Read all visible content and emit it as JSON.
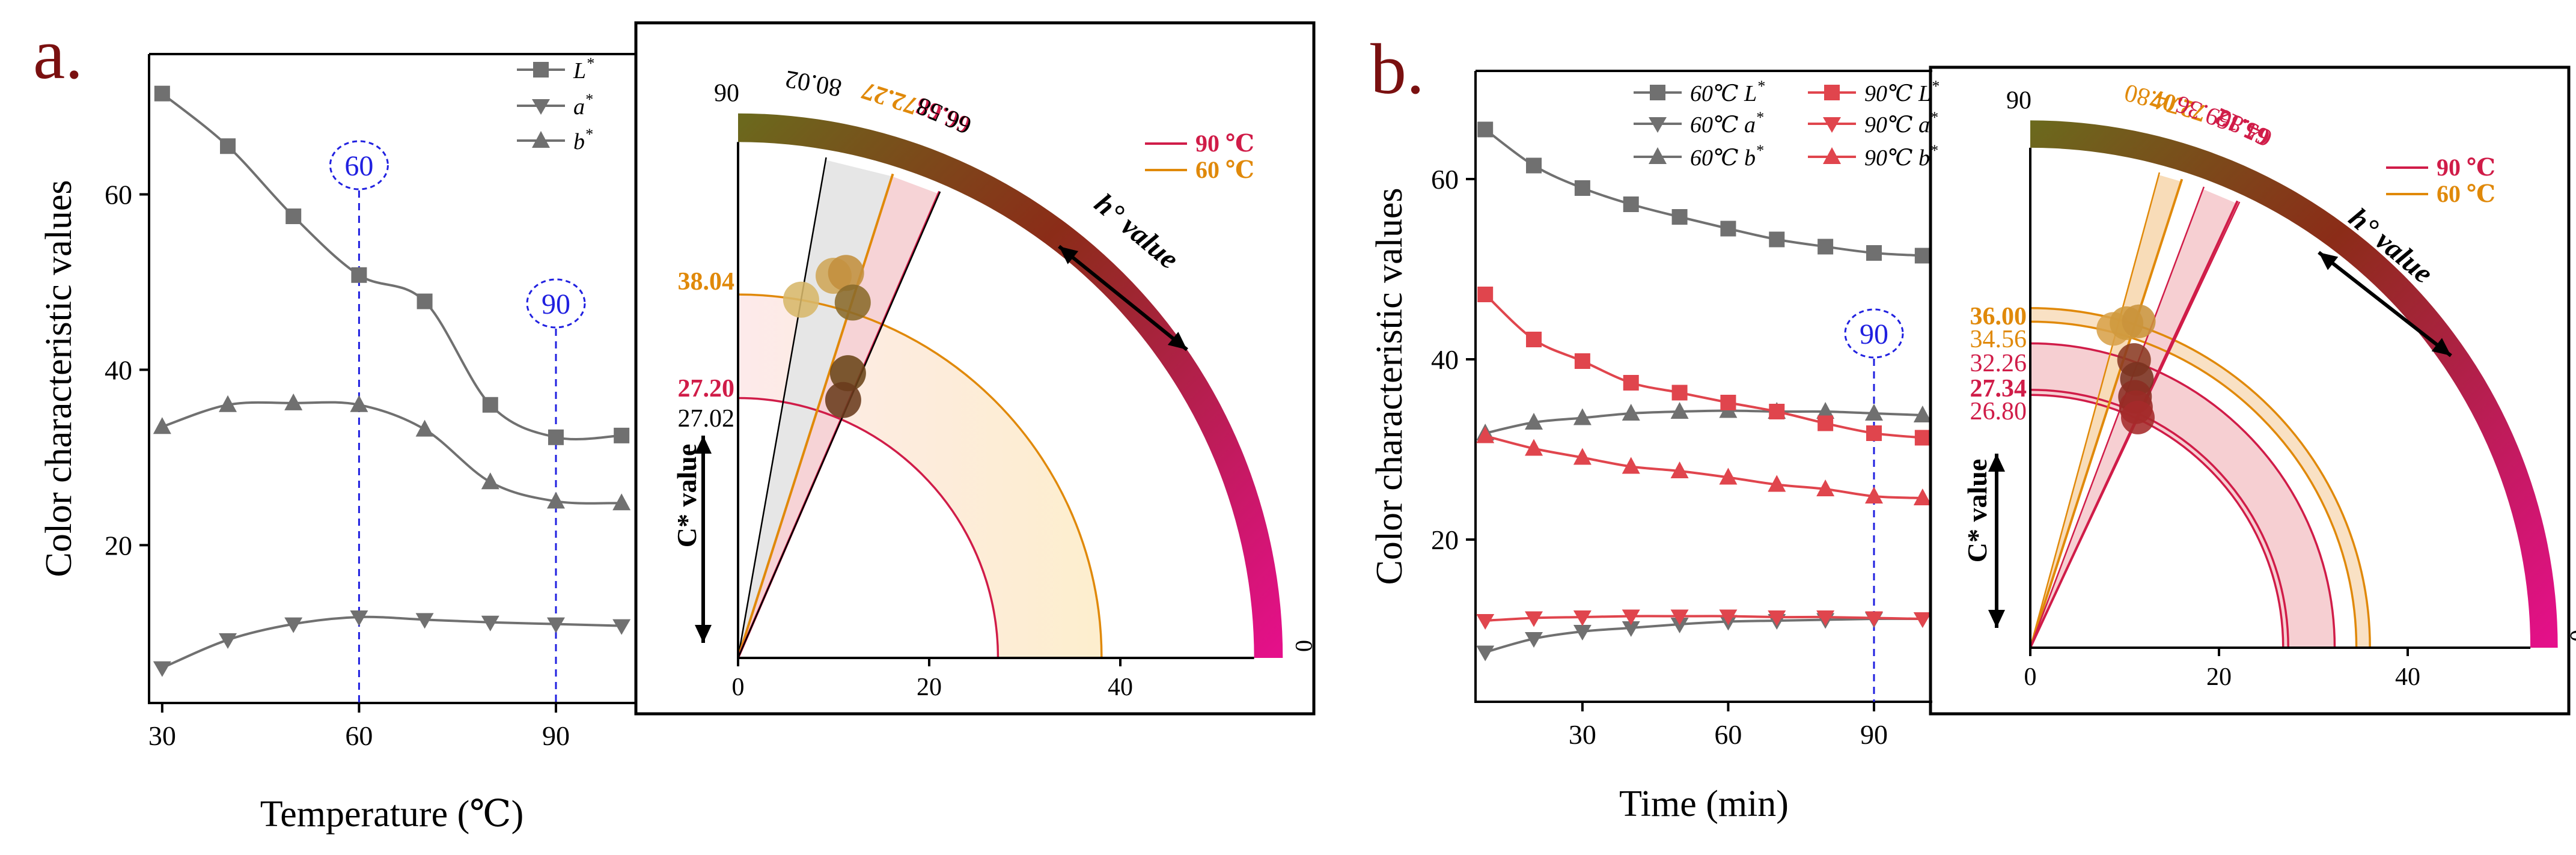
{
  "colors": {
    "axis": "#000000",
    "gray_series": "#707070",
    "red_series": "#e0454d",
    "guide": "#2020e0",
    "panel_label": "#7a1010",
    "hue_90C": "#d01c48",
    "hue_60C": "#e0890a",
    "hue_bar_start": "#6b6a1d",
    "hue_bar_mid": "#8b2c18",
    "hue_bar_end": "#e60f8c"
  },
  "chart_data": [
    {
      "id": "a-line",
      "type": "line",
      "panel_label": "a.",
      "xlabel": "Temperature (℃)",
      "ylabel": "Color characteristic values",
      "xlim": [
        28,
        102
      ],
      "ylim": [
        2,
        76
      ],
      "xticks": [
        30,
        60,
        90
      ],
      "yticks": [
        20,
        40,
        60
      ],
      "x": [
        30,
        40,
        50,
        60,
        70,
        80,
        90,
        100
      ],
      "series": [
        {
          "name": "L",
          "label": "L",
          "marker": "square",
          "color": "#707070",
          "values": [
            71.5,
            65.5,
            57.5,
            50.8,
            47.8,
            36.0,
            32.3,
            32.5
          ]
        },
        {
          "name": "a",
          "label": "a",
          "marker": "triangle-down",
          "color": "#707070",
          "values": [
            6.0,
            9.2,
            11.0,
            11.8,
            11.5,
            11.2,
            11.0,
            10.8
          ]
        },
        {
          "name": "b",
          "label": "b",
          "marker": "triangle-up",
          "color": "#707070",
          "values": [
            33.5,
            36.0,
            36.2,
            36.0,
            33.2,
            27.2,
            25.0,
            24.8
          ]
        }
      ],
      "annotations": [
        {
          "text": "60",
          "x": 60
        },
        {
          "text": "90",
          "x": 90
        }
      ]
    },
    {
      "id": "a-polar",
      "type": "scatter",
      "xticks": [
        0,
        20,
        40
      ],
      "r_max": 54,
      "angle_start_label": "90",
      "angle_end_label": "0",
      "hue_axis_label": "h° value",
      "chroma_axis_label": "C* value",
      "legend": [
        {
          "label": "90 ℃",
          "color": "#d01c48"
        },
        {
          "label": "60 ℃",
          "color": "#e0890a"
        }
      ],
      "hue_lines": [
        {
          "label": "80.02",
          "angle": 80.02,
          "color": "#000000",
          "bold": false
        },
        {
          "label": "72.27",
          "angle": 72.27,
          "color": "#e0890a",
          "bold": true
        },
        {
          "label": "66.66",
          "angle": 66.66,
          "color": "#d01c48",
          "bold": true
        },
        {
          "label": "66.58",
          "angle": 66.58,
          "color": "#000000",
          "bold": false
        }
      ],
      "chroma_arcs": [
        {
          "label": "38.04",
          "r": 38.04,
          "color": "#e0890a",
          "bold": true
        },
        {
          "label": "27.20",
          "r": 27.2,
          "color": "#d01c48",
          "bold": true
        },
        {
          "label": "27.02",
          "r": 27.02,
          "color": "#000000",
          "bold": false
        }
      ],
      "points": [
        {
          "x": 6.6,
          "y": 37.5,
          "color": "#d7b76a"
        },
        {
          "x": 10.0,
          "y": 40.0,
          "color": "#cfa658"
        },
        {
          "x": 11.3,
          "y": 40.3,
          "color": "#c38f3e"
        },
        {
          "x": 12.0,
          "y": 37.2,
          "color": "#8a6a2a"
        },
        {
          "x": 11.5,
          "y": 29.8,
          "color": "#6a4418"
        },
        {
          "x": 11.0,
          "y": 27.0,
          "color": "#6a3b1c"
        }
      ]
    },
    {
      "id": "b-line",
      "type": "line",
      "panel_label": "b.",
      "xlabel": "Time (min)",
      "ylabel": "Color characteristic values",
      "xlim": [
        8,
        102
      ],
      "ylim": [
        2,
        72
      ],
      "xticks": [
        30,
        60,
        90
      ],
      "yticks": [
        20,
        40,
        60
      ],
      "x": [
        10,
        20,
        30,
        40,
        50,
        60,
        70,
        80,
        90,
        100
      ],
      "series": [
        {
          "name": "60L",
          "label": "60℃ L",
          "marker": "square",
          "color": "#707070",
          "values": [
            65.5,
            61.5,
            59.0,
            57.2,
            55.8,
            54.5,
            53.3,
            52.5,
            51.8,
            51.5
          ]
        },
        {
          "name": "60a",
          "label": "60℃ a",
          "marker": "triangle-down",
          "color": "#707070",
          "values": [
            7.5,
            9.0,
            9.8,
            10.2,
            10.6,
            10.9,
            11.0,
            11.1,
            11.2,
            11.2
          ]
        },
        {
          "name": "60b",
          "label": "60℃ b",
          "marker": "triangle-up",
          "color": "#707070",
          "values": [
            31.8,
            33.0,
            33.5,
            34.0,
            34.2,
            34.3,
            34.2,
            34.2,
            34.0,
            33.8
          ]
        },
        {
          "name": "90L",
          "label": "90℃ L",
          "marker": "square",
          "color": "#e0454d",
          "values": [
            47.2,
            42.2,
            39.8,
            37.4,
            36.3,
            35.2,
            34.2,
            32.9,
            31.8,
            31.3
          ]
        },
        {
          "name": "90a",
          "label": "90℃ a",
          "marker": "triangle-down",
          "color": "#e0454d",
          "values": [
            11.0,
            11.3,
            11.4,
            11.5,
            11.5,
            11.5,
            11.4,
            11.4,
            11.3,
            11.2
          ]
        },
        {
          "name": "90b",
          "label": "90℃ b",
          "marker": "triangle-up",
          "color": "#e0454d",
          "values": [
            31.5,
            30.1,
            29.1,
            28.1,
            27.6,
            26.9,
            26.1,
            25.6,
            24.8,
            24.6
          ]
        }
      ],
      "annotations": [
        {
          "text": "90",
          "x": 90
        }
      ]
    },
    {
      "id": "b-polar",
      "type": "scatter",
      "xticks": [
        0,
        20,
        40
      ],
      "r_max": 53,
      "angle_start_label": "90",
      "angle_end_label": "0",
      "hue_axis_label": "h° value",
      "chroma_axis_label": "C* value",
      "legend": [
        {
          "label": "90 ℃",
          "color": "#d01c48"
        },
        {
          "label": "60 ℃",
          "color": "#e0890a"
        }
      ],
      "hue_lines": [
        {
          "label": "74.80",
          "angle": 74.8,
          "color": "#e0890a",
          "bold": false
        },
        {
          "label": "72.07",
          "angle": 72.07,
          "color": "#e0890a",
          "bold": true
        },
        {
          "label": "69.36",
          "angle": 69.36,
          "color": "#d01c48",
          "bold": false
        },
        {
          "label": "65.12",
          "angle": 65.12,
          "color": "#d01c48",
          "bold": true
        },
        {
          "label": "64.86",
          "angle": 64.86,
          "color": "#d01c48",
          "bold": false
        }
      ],
      "chroma_arcs": [
        {
          "label": "36.00",
          "r": 36.0,
          "color": "#e0890a",
          "bold": true
        },
        {
          "label": "34.56",
          "r": 34.56,
          "color": "#e0890a",
          "bold": false
        },
        {
          "label": "32.26",
          "r": 32.26,
          "color": "#d01c48",
          "bold": false
        },
        {
          "label": "27.34",
          "r": 27.34,
          "color": "#d01c48",
          "bold": true
        },
        {
          "label": "26.80",
          "r": 26.8,
          "color": "#d01c48",
          "bold": false
        }
      ],
      "points": [
        {
          "x": 8.8,
          "y": 33.8,
          "color": "#d8a24a"
        },
        {
          "x": 10.2,
          "y": 34.4,
          "color": "#cf9a3e"
        },
        {
          "x": 11.5,
          "y": 34.6,
          "color": "#c9933b"
        },
        {
          "x": 11.0,
          "y": 30.5,
          "color": "#8a3a22"
        },
        {
          "x": 11.3,
          "y": 28.5,
          "color": "#7a3320"
        },
        {
          "x": 11.1,
          "y": 26.6,
          "color": "#8a2d22"
        },
        {
          "x": 11.2,
          "y": 25.5,
          "color": "#9a2a26"
        },
        {
          "x": 11.4,
          "y": 24.4,
          "color": "#a52a2a"
        }
      ]
    }
  ]
}
